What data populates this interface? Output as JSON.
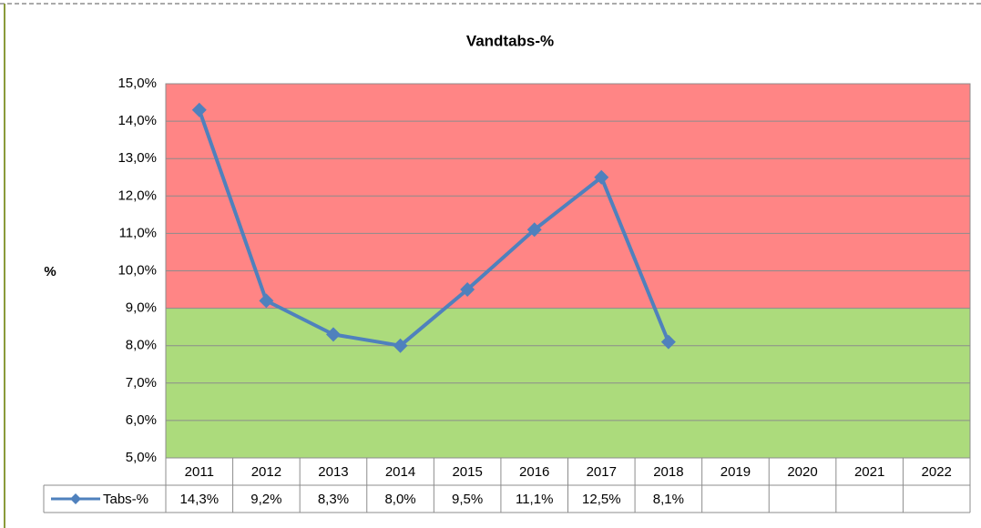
{
  "chart_data": {
    "type": "line",
    "title": "Vandtabs-%",
    "y_label": "%",
    "categories": [
      "2011",
      "2012",
      "2013",
      "2014",
      "2015",
      "2016",
      "2017",
      "2018",
      "2019",
      "2020",
      "2021",
      "2022"
    ],
    "series": [
      {
        "name": "Tabs-%",
        "color": "#4f81bd",
        "values": [
          14.3,
          9.2,
          8.3,
          8.0,
          9.5,
          11.1,
          12.5,
          8.1,
          null,
          null,
          null,
          null
        ],
        "value_labels": [
          "14,3%",
          "9,2%",
          "8,3%",
          "8,0%",
          "9,5%",
          "11,1%",
          "12,5%",
          "8,1%",
          null,
          null,
          null,
          null
        ]
      }
    ],
    "ylim": [
      5,
      15
    ],
    "yticks": [
      {
        "value": 5,
        "label": "5,0%"
      },
      {
        "value": 6,
        "label": "6,0%"
      },
      {
        "value": 7,
        "label": "7,0%"
      },
      {
        "value": 8,
        "label": "8,0%"
      },
      {
        "value": 9,
        "label": "9,0%"
      },
      {
        "value": 10,
        "label": "10,0%"
      },
      {
        "value": 11,
        "label": "11,0%"
      },
      {
        "value": 12,
        "label": "12,0%"
      },
      {
        "value": 13,
        "label": "13,0%"
      },
      {
        "value": 14,
        "label": "14,0%"
      },
      {
        "value": 15,
        "label": "15,0%"
      }
    ],
    "grid": true,
    "bands": [
      {
        "from": 5,
        "to": 9,
        "color": "#acdb7c"
      },
      {
        "from": 9,
        "to": 15,
        "color": "#ff8585"
      }
    ]
  }
}
